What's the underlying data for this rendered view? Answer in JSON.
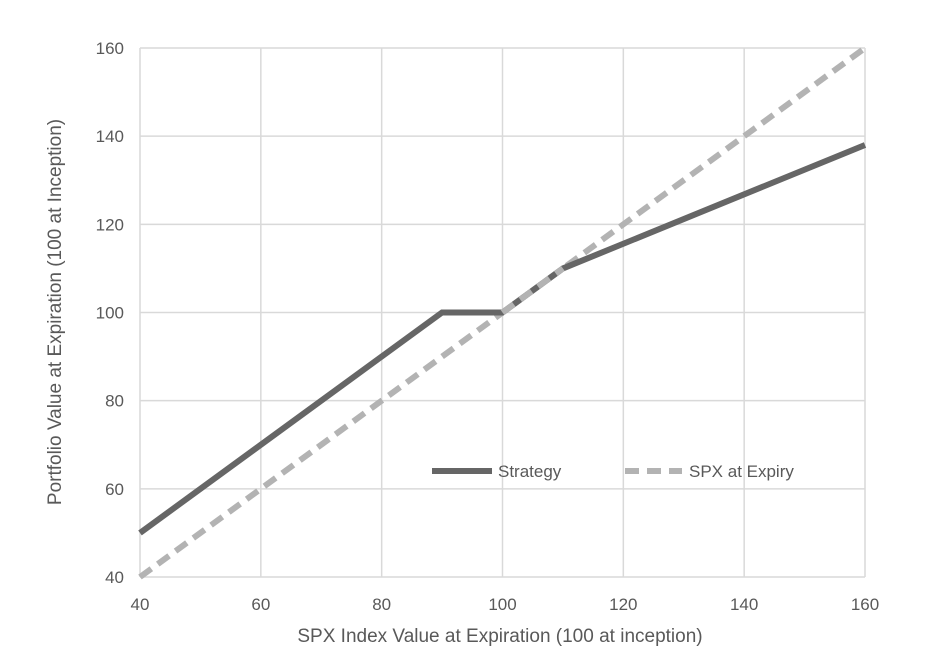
{
  "chart_data": {
    "type": "line",
    "title": "",
    "xlabel": "SPX Index Value at Expiration (100 at inception)",
    "ylabel": "Portfolio Value at Expiration (100 at Inception)",
    "xlim": [
      40,
      160
    ],
    "ylim": [
      40,
      160
    ],
    "xticks": [
      40,
      60,
      80,
      100,
      120,
      140,
      160
    ],
    "yticks": [
      40,
      60,
      80,
      100,
      120,
      140,
      160
    ],
    "grid": true,
    "legend_placement": "inside-lower-right",
    "series": [
      {
        "name": "Strategy",
        "color": "#666666",
        "style": "solid",
        "points": [
          [
            40,
            50
          ],
          [
            90,
            100
          ],
          [
            100,
            100
          ],
          [
            110,
            110
          ],
          [
            160,
            138
          ]
        ]
      },
      {
        "name": "SPX at Expiry",
        "color": "#b3b3b3",
        "style": "dashed",
        "points": [
          [
            40,
            40
          ],
          [
            160,
            160
          ]
        ]
      }
    ]
  }
}
